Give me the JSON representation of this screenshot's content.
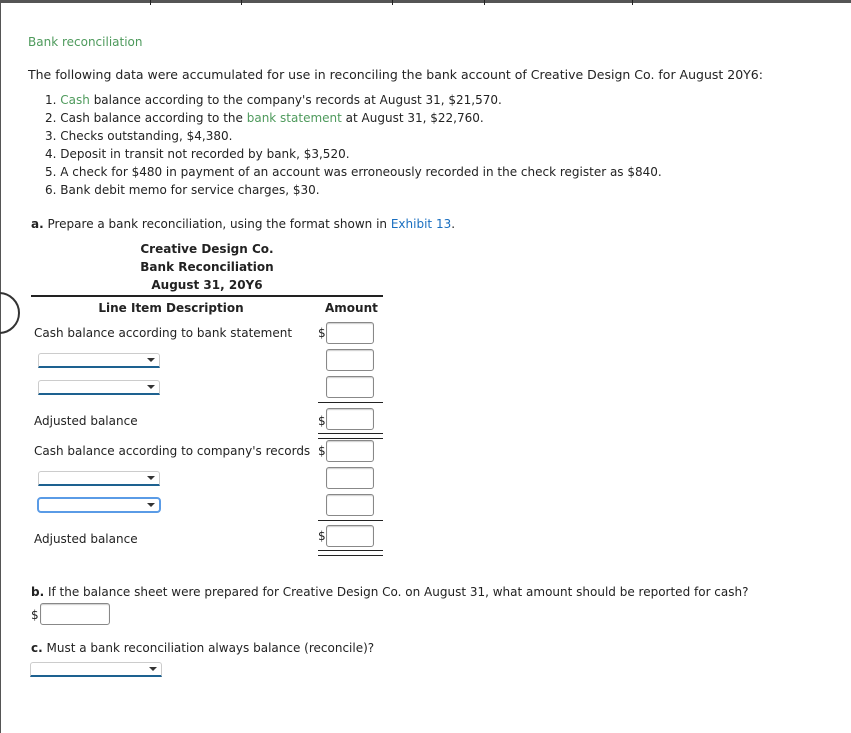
{
  "title": "Bank reconciliation",
  "intro": "The following data were accumulated for use in reconciling the bank account of Creative Design Co. for August 20Y6:",
  "items": [
    {
      "num": "1.",
      "link": "Cash",
      "text": " balance according to the company's records at August 31, $21,570."
    },
    {
      "num": "2.",
      "pre": "Cash balance according to the ",
      "link": "bank statement",
      "text": " at August 31, $22,760."
    },
    {
      "num": "3.",
      "text": "Checks outstanding, $4,380."
    },
    {
      "num": "4.",
      "text": "Deposit in transit not recorded by bank, $3,520."
    },
    {
      "num": "5.",
      "text": "A check for $480 in payment of an account was erroneously recorded in the check register as $840."
    },
    {
      "num": "6.",
      "text": "Bank debit memo for service charges, $30."
    }
  ],
  "part_a": {
    "label": "a.",
    "text": " Prepare a bank reconciliation, using the format shown in ",
    "link": "Exhibit 13",
    "end": "."
  },
  "recon": {
    "company": "Creative Design Co.",
    "heading": "Bank Reconciliation",
    "date": "August 31, 20Y6",
    "col_desc": "Line Item Description",
    "col_amount": "Amount",
    "rows": [
      "Cash balance according to bank statement",
      "Adjusted balance",
      "Cash balance according to company's records",
      "Adjusted balance"
    ],
    "currency": "$"
  },
  "part_b": {
    "label": "b.",
    "text": " If the balance sheet were prepared for Creative Design Co. on August 31, what amount should be reported for cash?"
  },
  "part_c": {
    "label": "c.",
    "text": " Must a bank reconciliation always balance (reconcile)?"
  }
}
